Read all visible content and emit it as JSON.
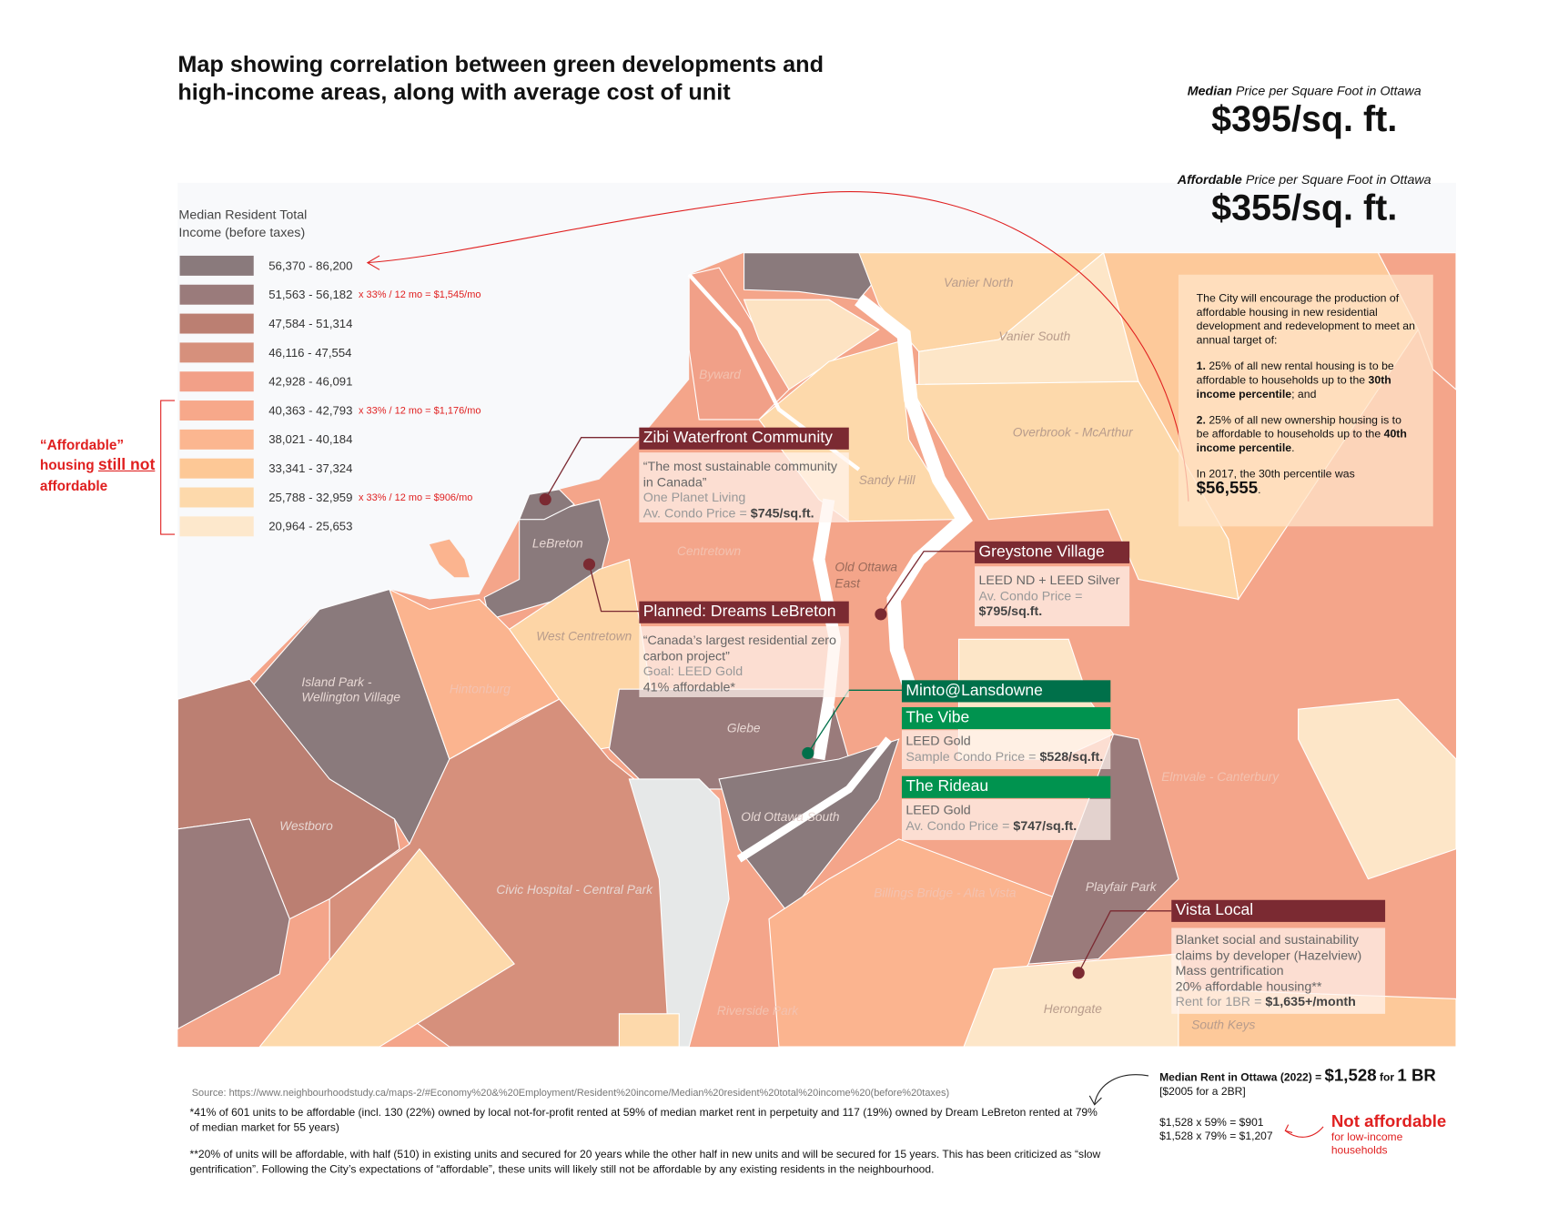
{
  "title": "Map showing correlation between green developments and high-income areas, along with average cost of unit",
  "stats": {
    "median": {
      "label_em": "Median",
      "label_rest": " Price per Square Foot in Ottawa",
      "value": "$395/sq. ft."
    },
    "affordable": {
      "label_em": "Affordable",
      "label_rest": " Price per Square Foot in Ottawa",
      "value": "$355/sq. ft."
    }
  },
  "legend": {
    "title_line1": "Median Resident Total",
    "title_line2": "Income (before taxes)",
    "items": [
      {
        "range": "56,370 - 86,200",
        "color": "#8a7a7c",
        "note": ""
      },
      {
        "range": "51,563 - 56,182",
        "color": "#9a7b7b",
        "note": "x 33% / 12 mo = $1,545/mo"
      },
      {
        "range": "47,584 - 51,314",
        "color": "#bb7f72",
        "note": ""
      },
      {
        "range": "46,116 - 47,554",
        "color": "#d6907c",
        "note": ""
      },
      {
        "range": "42,928 - 46,091",
        "color": "#f2a088",
        "note": ""
      },
      {
        "range": "40,363 - 42,793",
        "color": "#f7a88a",
        "note": "x 33% / 12 mo = $1,176/mo"
      },
      {
        "range": "38,021 - 40,184",
        "color": "#fbb690",
        "note": ""
      },
      {
        "range": "33,341 - 37,324",
        "color": "#fdc896",
        "note": ""
      },
      {
        "range": "25,788 - 32,959",
        "color": "#fdd9ab",
        "note": "x 33% / 12 mo = $906/mo"
      },
      {
        "range": "20,964 - 25,653",
        "color": "#fde8cc",
        "note": ""
      }
    ]
  },
  "affordable_note": {
    "line1": "“Affordable”",
    "line2a": "housing ",
    "line2b": "still not",
    "line3": "affordable"
  },
  "neighbourhoods": [
    "Vanier North",
    "Vanier South",
    "Byward",
    "Overbrook - McArthur",
    "Sandy Hill",
    "LeBreton",
    "Centretown",
    "Old Ottawa",
    "East",
    "West Centretown",
    "Island Park -",
    "Wellington Village",
    "Hintonburg",
    "Glebe",
    "Elmvale - Canterbury",
    "Westboro",
    "Old Ottawa South",
    "Civic Hospital - Central Park",
    "Billings Bridge - Alta Vista",
    "Playfair Park",
    "Riverside Park",
    "Herongate",
    "South Keys"
  ],
  "callouts": {
    "zibi": {
      "name": "Zibi Waterfront Community",
      "quote": "“The most sustainable community in Canada”",
      "cert": "One Planet Living",
      "price_label": "Av. Condo Price = ",
      "price": "$745/sq.ft."
    },
    "greystone": {
      "name": "Greystone Village",
      "cert": "LEED ND + LEED Silver",
      "price_label": "Av. Condo Price =",
      "price": "$795/sq.ft."
    },
    "dreams": {
      "name": "Planned: Dreams LeBreton",
      "quote": "“Canada’s largest residential zero carbon project”",
      "cert": "Goal: LEED Gold",
      "affordable": "41% affordable*"
    },
    "minto": {
      "name": "Minto@Lansdowne"
    },
    "vibe": {
      "name": "The Vibe",
      "cert": "LEED Gold",
      "price_label": "Sample Condo Price = ",
      "price": "$528/sq.ft."
    },
    "rideau": {
      "name": "The Rideau",
      "cert": "LEED Gold",
      "price_label": "Av. Condo Price = ",
      "price": "$747/sq.ft."
    },
    "vista": {
      "name": "Vista Local",
      "line1": "Blanket social and sustainability claims by developer (Hazelview)",
      "line2": "Mass gentrification",
      "line3": "20% affordable housing**",
      "price_label": "Rent for 1BR = ",
      "price": "$1,635+/month"
    }
  },
  "city_box": {
    "intro": "The City will encourage the production of affordable housing in new residential development and redevelopment to meet an annual target of:",
    "p1_num": "1.",
    "p1_text": " 25% of all new rental housing is to be affordable to households up to the ",
    "p1_bold": "30th income percentile",
    "p1_end": "; and",
    "p2_num": "2.",
    "p2_text": " 25% of all new ownership housing is to be affordable to households up to the ",
    "p2_bold": "40th income percentile",
    "p2_end": ".",
    "p3": "In 2017, the 30th percentile was",
    "p3_value": "$56,555",
    "p3_end": "."
  },
  "footer": {
    "source": "Source: https://www.neighbourhoodstudy.ca/maps-2/#Economy%20&%20Employment/Resident%20income/Median%20resident%20total%20income%20(before%20taxes)",
    "footnote1": "*41% of 601 units to be affordable (incl. 130 (22%) owned by local not-for-profit rented at 59% of median market rent in perpetuity and 117 (19%) owned by Dream LeBreton rented at 79% of median market for 55 years)",
    "footnote2": "**20% of units will be affordable, with half (510) in existing units and secured for 20 years while the other half in new units and will be secured for 15 years. This has been criticized as “slow gentrification”. Following the City’s expectations of “affordable”, these units will likely still not be affordable by any existing residents in the neighbourhood.",
    "rent_label": "Median Rent in Ottawa (2022) = ",
    "rent_value": "$1,528",
    "rent_for": " for ",
    "rent_unit": "1 BR",
    "rent_2br": "[$2005 for a 2BR]",
    "calc1": "$1,528 x 59% = $901",
    "calc2": "$1,528 x 79% = $1,207",
    "not_affordable": "Not affordable",
    "not_affordable_sub": "for low-income households"
  }
}
